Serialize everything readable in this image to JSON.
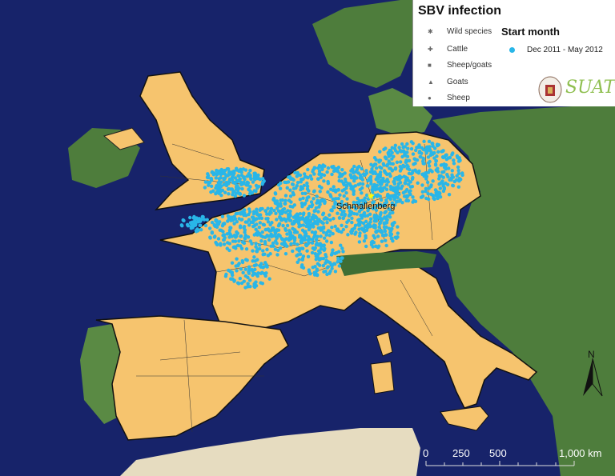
{
  "legend": {
    "title": "SBV infection",
    "species": [
      {
        "label": "Wild species",
        "symbol": "✱"
      },
      {
        "label": "Cattle",
        "symbol": "✚"
      },
      {
        "label": "Sheep/goats",
        "symbol": "■"
      },
      {
        "label": "Goats",
        "symbol": "▲"
      },
      {
        "label": "Sheep",
        "symbol": "●"
      }
    ],
    "start_month_title": "Start month",
    "start_month_items": [
      {
        "label": "Dec 2011 - May 2012",
        "color": "#29b6e8"
      }
    ],
    "logo_text": "SUAT"
  },
  "places": {
    "origin": "Schmallenberg"
  },
  "scale_bar": {
    "labels": [
      "0",
      "250",
      "500",
      "1,000 km"
    ]
  },
  "north_arrow": "N",
  "colors": {
    "ocean": "#17236a",
    "affected_countries": "#f6c46e",
    "other_land": "#4e7d3c",
    "cases": "#29b6e8"
  }
}
